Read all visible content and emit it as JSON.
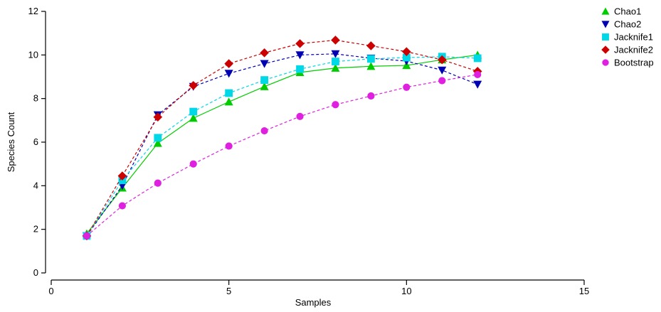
{
  "chart_data": {
    "type": "line",
    "title": "",
    "xlabel": "Samples",
    "ylabel": "Species Count",
    "xlim": [
      0,
      15
    ],
    "ylim": [
      0,
      12
    ],
    "xticks": [
      0,
      5,
      10,
      15
    ],
    "yticks": [
      0,
      2,
      4,
      6,
      8,
      10,
      12
    ],
    "grid": false,
    "legend_position": "top-right",
    "x": [
      1,
      2,
      3,
      4,
      5,
      6,
      7,
      8,
      9,
      10,
      11,
      12
    ],
    "series": [
      {
        "name": "Chao1",
        "color": "#00cc00",
        "marker": "triangle-up",
        "line": "solid",
        "values": [
          1.8,
          3.9,
          5.95,
          7.1,
          7.85,
          8.55,
          9.2,
          9.4,
          9.48,
          9.52,
          9.78,
          10.0
        ]
      },
      {
        "name": "Chao2",
        "color": "#0000b3",
        "marker": "triangle-down",
        "line": "dashed",
        "values": [
          1.7,
          4.0,
          7.25,
          8.55,
          9.15,
          9.6,
          10.0,
          10.05,
          9.85,
          9.72,
          9.3,
          8.65
        ]
      },
      {
        "name": "Jacknife1",
        "color": "#00d8e8",
        "marker": "square",
        "line": "dashed",
        "values": [
          1.7,
          4.25,
          6.2,
          7.4,
          8.25,
          8.85,
          9.35,
          9.7,
          9.82,
          9.88,
          9.92,
          9.85
        ]
      },
      {
        "name": "Jacknife2",
        "color": "#cc0000",
        "marker": "diamond",
        "line": "dashed",
        "values": [
          1.7,
          4.45,
          7.15,
          8.6,
          9.6,
          10.1,
          10.52,
          10.68,
          10.42,
          10.15,
          9.78,
          9.25
        ]
      },
      {
        "name": "Bootstrap",
        "color": "#e020e0",
        "marker": "circle",
        "line": "dashed",
        "values": [
          1.7,
          3.08,
          4.12,
          5.0,
          5.82,
          6.52,
          7.18,
          7.72,
          8.12,
          8.52,
          8.82,
          9.1
        ]
      }
    ]
  }
}
